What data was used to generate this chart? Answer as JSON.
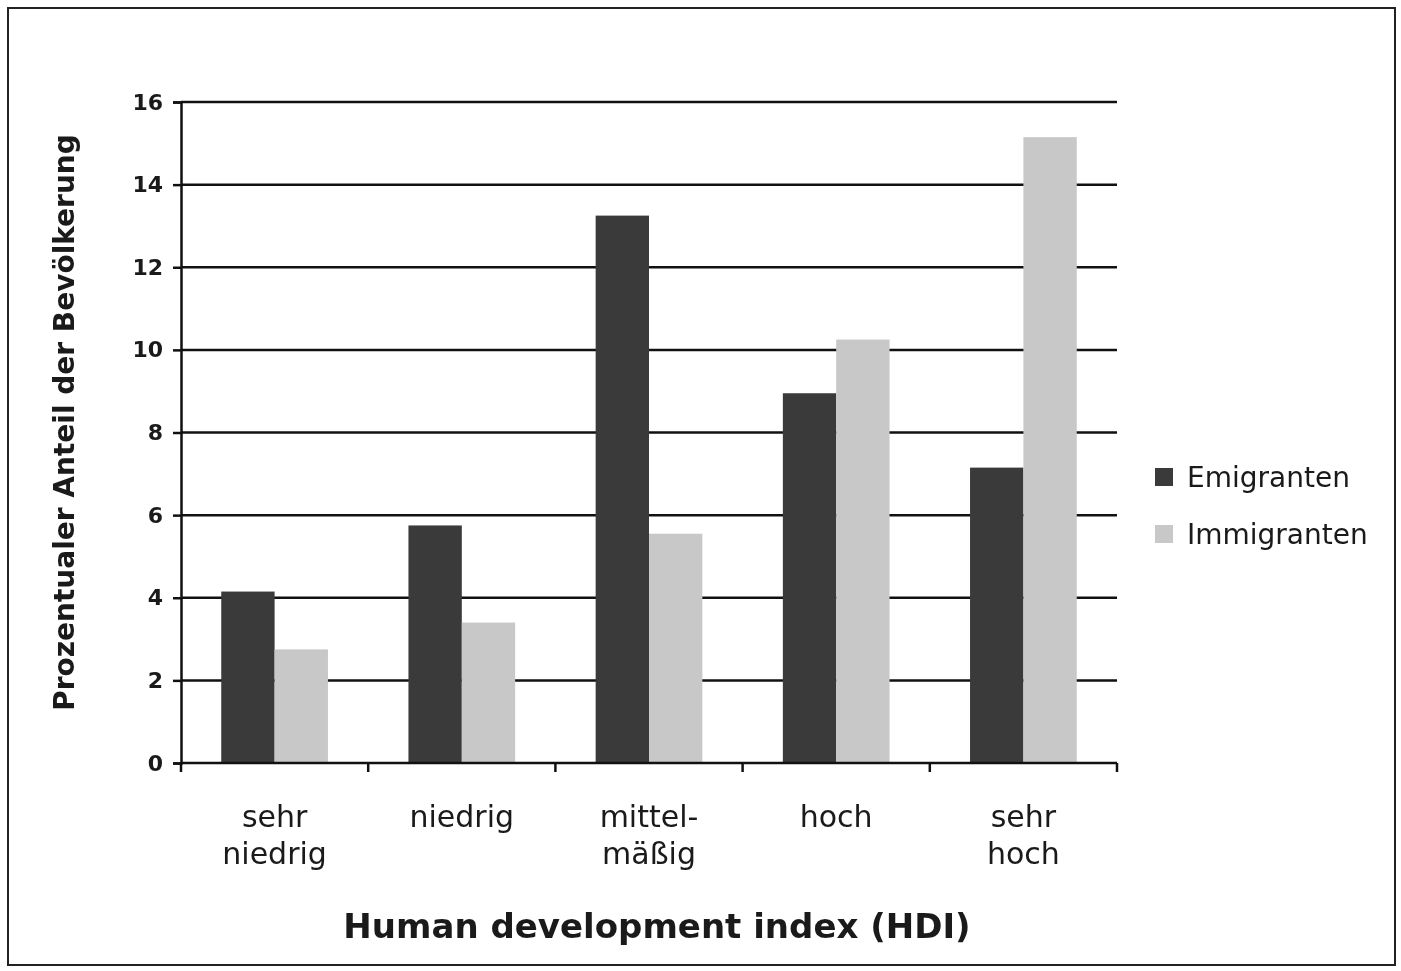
{
  "chart_data": {
    "type": "bar",
    "xlabel": "Human development index (HDI)",
    "ylabel": "Prozentualer Anteil der Bevölkerung",
    "categories": [
      "sehr niedrig",
      "niedrig",
      "mittel-mäßig",
      "hoch",
      "sehr hoch"
    ],
    "series": [
      {
        "name": "Emigranten",
        "color": "#3a3a3a",
        "values": [
          4.15,
          5.75,
          13.25,
          8.95,
          7.15
        ]
      },
      {
        "name": "Immigranten",
        "color": "#c8c8c8",
        "values": [
          2.75,
          3.4,
          5.55,
          10.25,
          15.15
        ]
      }
    ],
    "ylim": [
      0,
      16
    ],
    "yticks": [
      0,
      2,
      4,
      6,
      8,
      10,
      12,
      14,
      16
    ],
    "grid": "y",
    "legend": "right"
  }
}
